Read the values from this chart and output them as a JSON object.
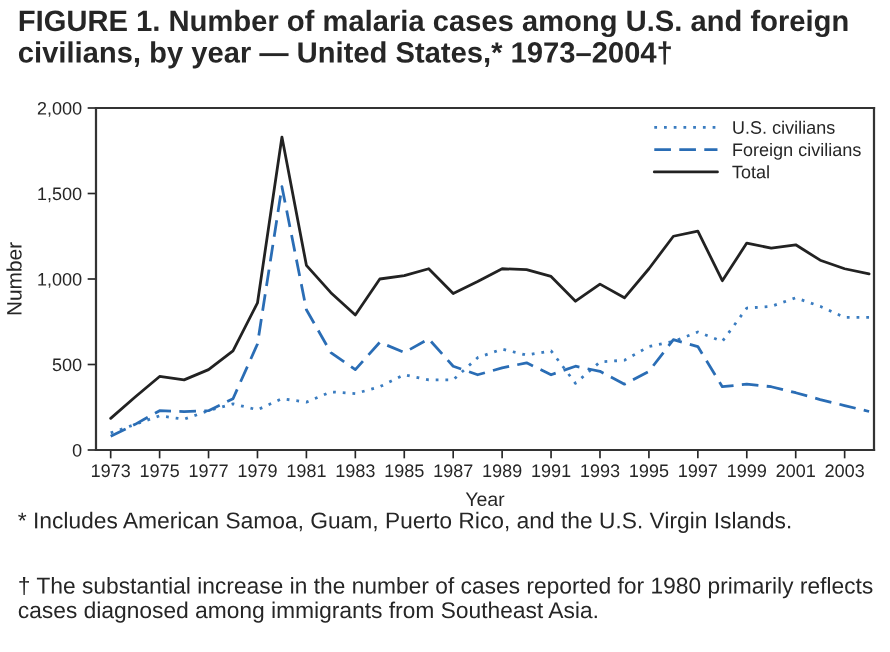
{
  "chart_data": {
    "type": "line",
    "title": "FIGURE 1. Number of malaria cases among U.S. and foreign civilians, by year — United States,* 1973–2004†",
    "xlabel": "Year",
    "ylabel": "Number",
    "x": [
      1973,
      1974,
      1975,
      1976,
      1977,
      1978,
      1979,
      1980,
      1981,
      1982,
      1983,
      1984,
      1985,
      1986,
      1987,
      1988,
      1989,
      1990,
      1991,
      1992,
      1993,
      1994,
      1995,
      1996,
      1997,
      1998,
      1999,
      2000,
      2001,
      2002,
      2003,
      2004
    ],
    "series": [
      {
        "name": "U.S. civilians",
        "color": "#3a7cc0",
        "line_style": "dotted",
        "values": [
          100,
          150,
          200,
          180,
          230,
          270,
          235,
          300,
          280,
          340,
          330,
          370,
          440,
          410,
          410,
          540,
          590,
          555,
          580,
          390,
          515,
          525,
          605,
          635,
          690,
          635,
          830,
          840,
          890,
          840,
          775,
          775
        ]
      },
      {
        "name": "Foreign civilians",
        "color": "#2a6db5",
        "line_style": "dashed",
        "values": [
          80,
          150,
          230,
          225,
          230,
          300,
          620,
          1540,
          820,
          570,
          470,
          630,
          570,
          650,
          490,
          440,
          480,
          510,
          440,
          490,
          460,
          385,
          460,
          645,
          605,
          370,
          385,
          370,
          335,
          295,
          260,
          225
        ]
      },
      {
        "name": "Total",
        "color": "#222222",
        "line_style": "solid",
        "values": [
          185,
          310,
          430,
          410,
          470,
          580,
          860,
          1830,
          1080,
          920,
          790,
          1000,
          1020,
          1060,
          915,
          985,
          1060,
          1055,
          1015,
          870,
          970,
          890,
          1060,
          1250,
          1280,
          990,
          1210,
          1180,
          1200,
          1110,
          1060,
          1030
        ]
      }
    ],
    "xlim": [
      1972.4,
      2004.2
    ],
    "xticks": [
      1973,
      1975,
      1977,
      1979,
      1981,
      1983,
      1985,
      1987,
      1989,
      1991,
      1993,
      1995,
      1997,
      1999,
      2001,
      2003
    ],
    "ylim": [
      0,
      2000
    ],
    "yticks": [
      0,
      500,
      {
        "value": 1000,
        "label": "1,000"
      },
      {
        "value": 1500,
        "label": "1,500"
      },
      {
        "value": 2000,
        "label": "2,000"
      }
    ],
    "grid": false,
    "legend": "top right",
    "annotations": [
      "* Includes American Samoa, Guam, Puerto Rico, and the U.S. Virgin Islands.",
      "† The substantial increase in the number of cases reported for 1980 primarily reflects cases diagnosed among immigrants from Southeast Asia."
    ]
  }
}
